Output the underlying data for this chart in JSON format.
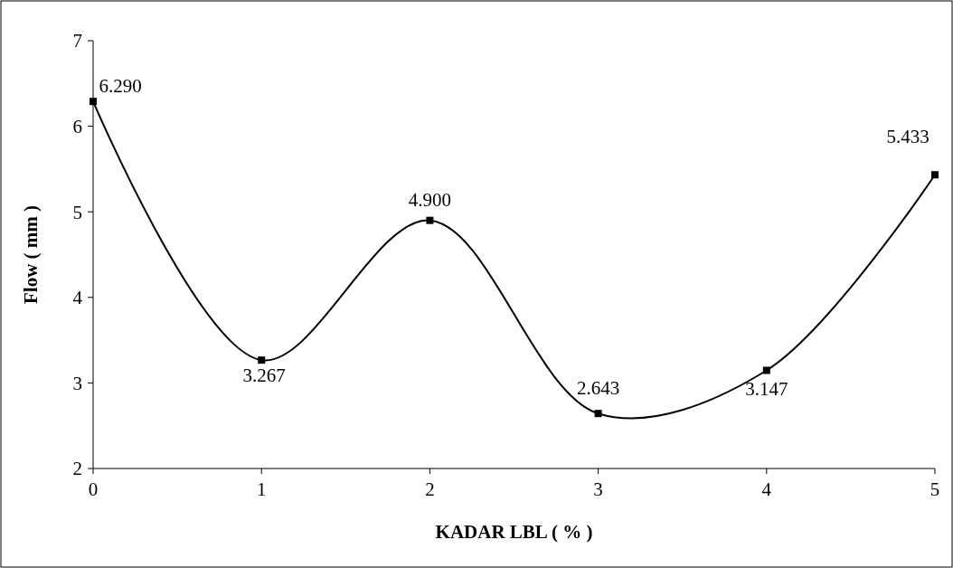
{
  "chart_data": {
    "type": "line",
    "xlabel": "KADAR LBL ( % )",
    "ylabel": "Flow ( mm )",
    "x": [
      0,
      1,
      2,
      3,
      4,
      5
    ],
    "series": [
      {
        "color": "#000000",
        "values": [
          6.29,
          3.267,
          4.9,
          2.643,
          3.147,
          5.433
        ],
        "value_labels": [
          "6.290",
          "3.267",
          "4.900",
          "2.643",
          "3.147",
          "5.433"
        ]
      }
    ],
    "xlim": [
      0,
      5
    ],
    "xticks": [
      0,
      1,
      2,
      3,
      4,
      5
    ],
    "ylim": [
      2,
      7
    ],
    "yticks": [
      2,
      3,
      4,
      5,
      6,
      7
    ],
    "marker": "square",
    "line_style": "solid"
  }
}
